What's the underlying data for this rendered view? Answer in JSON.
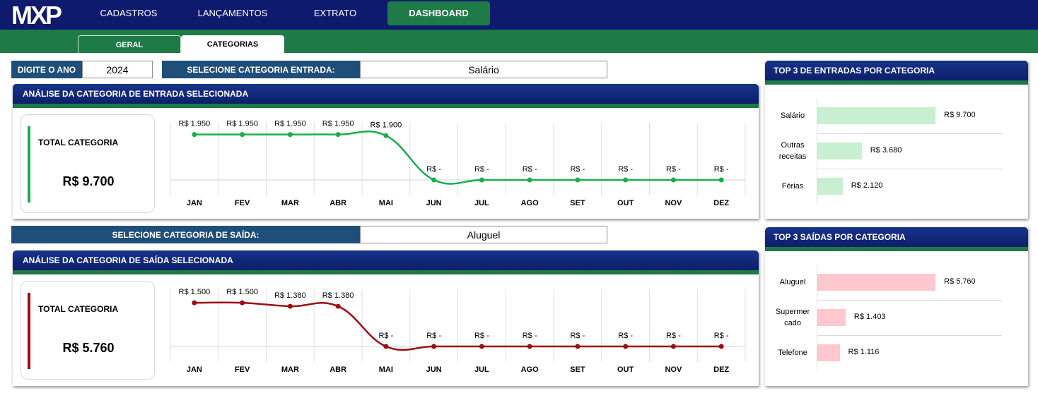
{
  "brand": {
    "logo_text": "MXP"
  },
  "nav": {
    "items": [
      {
        "label": "CADASTROS"
      },
      {
        "label": "LANÇAMENTOS"
      },
      {
        "label": "EXTRATO"
      },
      {
        "label": "DASHBOARD"
      }
    ]
  },
  "tabs": [
    {
      "label": "GERAL"
    },
    {
      "label": "CATEGORIAS"
    }
  ],
  "year": {
    "label": "DIGITE O ANO",
    "value": "2024"
  },
  "income_select": {
    "label": "SELECIONE CATEGORIA ENTRADA:",
    "value": "Salário"
  },
  "expense_select": {
    "label": "SELECIONE CATEGORIA DE SAÍDA:",
    "value": "Aluguel"
  },
  "income_panel": {
    "title": "ANÁLISE DA CATEGORIA DE ENTRADA SELECIONADA",
    "total_label": "TOTAL CATEGORIA",
    "total_value": "R$ 9.700"
  },
  "expense_panel": {
    "title": "ANÁLISE DA CATEGORIA DE SAÍDA SELECIONADA",
    "total_label": "TOTAL CATEGORIA",
    "total_value": "R$ 5.760"
  },
  "top_income": {
    "title": "TOP 3  DE ENTRADAS POR CATEGORIA",
    "items": [
      {
        "lines": [
          "Salário"
        ],
        "value": 9700,
        "value_label": "R$ 9.700"
      },
      {
        "lines": [
          "Outras",
          "receitas"
        ],
        "value": 3680,
        "value_label": "R$ 3.680"
      },
      {
        "lines": [
          "Férias"
        ],
        "value": 2120,
        "value_label": "R$ 2.120"
      }
    ]
  },
  "top_expense": {
    "title": "TOP 3 SAÍDAS POR CATEGORIA",
    "items": [
      {
        "lines": [
          "Aluguel"
        ],
        "value": 5760,
        "value_label": "R$ 5.760"
      },
      {
        "lines": [
          "Supermer",
          "cado"
        ],
        "value": 1403,
        "value_label": "R$ 1.403"
      },
      {
        "lines": [
          "Telefone"
        ],
        "value": 1116,
        "value_label": "R$ 1.116"
      }
    ]
  },
  "colors": {
    "navy": "#0d1a6e",
    "green": "#1e7a46",
    "income_line": "#1aad4f",
    "expense_line": "#9b0d12",
    "income_bar": "#c8efd1",
    "expense_bar": "#ffc7ce",
    "select_label": "#1f4e79"
  },
  "chart_data": [
    {
      "type": "line",
      "name": "income",
      "categories": [
        "JAN",
        "FEV",
        "MAR",
        "ABR",
        "MAI",
        "JUN",
        "JUL",
        "AGO",
        "SET",
        "OUT",
        "NOV",
        "DEZ"
      ],
      "values": [
        1950,
        1950,
        1950,
        1950,
        1900,
        0,
        0,
        0,
        0,
        0,
        0,
        0
      ],
      "labels": [
        "R$ 1.950",
        "R$ 1.950",
        "R$ 1.950",
        "R$ 1.950",
        "R$ 1.900",
        "R$ -",
        "R$ -",
        "R$ -",
        "R$ -",
        "R$ -",
        "R$ -",
        "R$ -"
      ],
      "ylim": [
        0,
        2000
      ],
      "grid": "vertical"
    },
    {
      "type": "line",
      "name": "expense",
      "categories": [
        "JAN",
        "FEV",
        "MAR",
        "ABR",
        "MAI",
        "JUN",
        "JUL",
        "AGO",
        "SET",
        "OUT",
        "NOV",
        "DEZ"
      ],
      "values": [
        1500,
        1500,
        1380,
        1380,
        0,
        0,
        0,
        0,
        0,
        0,
        0,
        0
      ],
      "labels": [
        "R$ 1.500",
        "R$ 1.500",
        "R$ 1.380",
        "R$ 1.380",
        "R$ -",
        "R$ -",
        "R$ -",
        "R$ -",
        "R$ -",
        "R$ -",
        "R$ -",
        "R$ -"
      ],
      "ylim": [
        0,
        1600
      ],
      "grid": "vertical"
    },
    {
      "type": "bar",
      "name": "top_income",
      "orientation": "horizontal",
      "categories": [
        "Salário",
        "Outras receitas",
        "Férias"
      ],
      "values": [
        9700,
        3680,
        2120
      ]
    },
    {
      "type": "bar",
      "name": "top_expense",
      "orientation": "horizontal",
      "categories": [
        "Aluguel",
        "Supermercado",
        "Telefone"
      ],
      "values": [
        5760,
        1403,
        1116
      ]
    }
  ]
}
